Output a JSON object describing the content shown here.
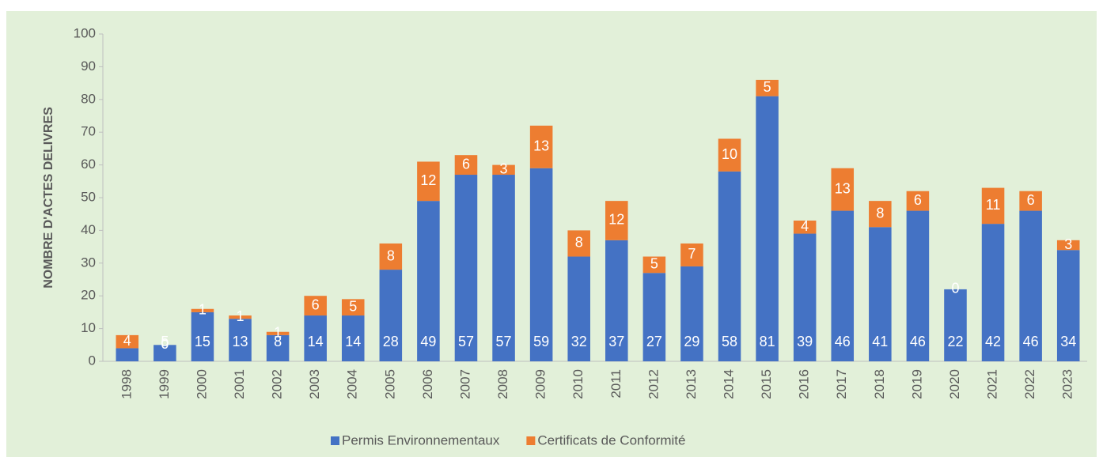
{
  "chart_data": {
    "type": "stacked_bar",
    "y_label": "NOMBRE D'ACTES DELIVRES",
    "categories": [
      "1998",
      "1999",
      "2000",
      "2001",
      "2002",
      "2003",
      "2004",
      "2005",
      "2006",
      "2007",
      "2008",
      "2009",
      "2010",
      "2011",
      "2012",
      "2013",
      "2014",
      "2015",
      "2016",
      "2017",
      "2018",
      "2019",
      "2020",
      "2021",
      "2022",
      "2023"
    ],
    "series": [
      {
        "name": "Permis Environnementaux",
        "color": "#4472c4",
        "values": [
          4,
          5,
          15,
          13,
          8,
          14,
          14,
          28,
          49,
          57,
          57,
          59,
          32,
          37,
          27,
          29,
          58,
          81,
          39,
          46,
          41,
          46,
          22,
          42,
          46,
          34
        ]
      },
      {
        "name": "Certificats de Conformité",
        "color": "#ed7d31",
        "values": [
          4,
          0,
          1,
          1,
          1,
          6,
          5,
          8,
          12,
          6,
          3,
          13,
          8,
          12,
          5,
          7,
          10,
          5,
          4,
          13,
          8,
          6,
          0,
          11,
          6,
          3
        ]
      }
    ],
    "ylim": [
      0,
      100
    ],
    "yticks": [
      0,
      10,
      20,
      30,
      40,
      50,
      60,
      70,
      80,
      90,
      100
    ],
    "legend": "bottom"
  }
}
